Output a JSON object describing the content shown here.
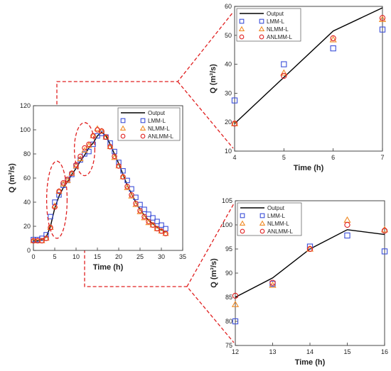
{
  "chart_data": [
    {
      "id": "main",
      "type": "line",
      "xlabel": "Time (h)",
      "ylabel": "Q (m³/s)",
      "xlim": [
        0,
        35
      ],
      "ylim": [
        0,
        120
      ],
      "xticks": [
        0,
        5,
        10,
        15,
        20,
        25,
        30,
        35
      ],
      "yticks": [
        0,
        20,
        40,
        60,
        80,
        100,
        120
      ],
      "grid": false,
      "legend_position": "top-right",
      "series": [
        {
          "name": "Output",
          "style": "line",
          "color": "#000000",
          "x": [
            0,
            1,
            2,
            3,
            4,
            5,
            6,
            7,
            8,
            9,
            10,
            11,
            12,
            13,
            14,
            15,
            16,
            17,
            18,
            19,
            20,
            21,
            22,
            23,
            24,
            25,
            26,
            27,
            28,
            29,
            30,
            31
          ],
          "y": [
            8,
            8,
            9,
            11,
            20,
            35,
            45,
            52,
            57,
            63,
            68,
            74,
            79,
            85,
            89,
            95,
            98,
            95,
            88,
            80,
            72,
            63,
            54,
            47,
            40,
            34,
            29,
            25,
            22,
            19,
            17,
            15
          ]
        },
        {
          "name": "LMM-L",
          "style": "square",
          "color": "#3b4fd8",
          "x": [
            0,
            1,
            2,
            3,
            4,
            5,
            6,
            7,
            8,
            9,
            10,
            11,
            12,
            13,
            14,
            15,
            16,
            17,
            18,
            19,
            20,
            21,
            22,
            23,
            24,
            25,
            26,
            27,
            28,
            29,
            30,
            31
          ],
          "y": [
            9,
            9,
            10,
            13,
            28,
            40,
            46,
            54,
            58,
            63,
            70,
            75,
            80,
            82,
            88,
            95,
            97,
            94,
            89,
            82,
            73,
            66,
            58,
            51,
            44,
            38,
            34,
            30,
            27,
            24,
            21,
            18
          ]
        },
        {
          "name": "NLMM-L",
          "style": "triangle",
          "color": "#f08c28",
          "x": [
            0,
            1,
            2,
            3,
            4,
            5,
            6,
            7,
            8,
            9,
            10,
            11,
            12,
            13,
            14,
            15,
            16,
            17,
            18,
            19,
            20,
            21,
            22,
            23,
            24,
            25,
            26,
            27,
            28,
            29,
            30,
            31
          ],
          "y": [
            8,
            8,
            8,
            10,
            19,
            37,
            49,
            55,
            58,
            64,
            70,
            76,
            83,
            87,
            95,
            101,
            99,
            94,
            86,
            77,
            70,
            61,
            52,
            45,
            38,
            32,
            27,
            23,
            21,
            18,
            16,
            14
          ]
        },
        {
          "name": "ANLMM-L",
          "style": "circle",
          "color": "#e02020",
          "x": [
            0,
            1,
            2,
            3,
            4,
            5,
            6,
            7,
            8,
            9,
            10,
            11,
            12,
            13,
            14,
            15,
            16,
            17,
            18,
            19,
            20,
            21,
            22,
            23,
            24,
            25,
            26,
            27,
            28,
            29,
            30,
            31
          ],
          "y": [
            8,
            8,
            8,
            10,
            19,
            36,
            49,
            56,
            59,
            64,
            71,
            78,
            85,
            88,
            95,
            100,
            99,
            94,
            86,
            78,
            70,
            61,
            53,
            46,
            39,
            33,
            28,
            24,
            21,
            18,
            16,
            14
          ]
        }
      ]
    },
    {
      "id": "zoom1",
      "type": "line",
      "xlabel": "Time (h)",
      "ylabel": "Q (m³/s)",
      "xlim": [
        4,
        7
      ],
      "ylim": [
        10,
        60
      ],
      "xticks": [
        4,
        5,
        6,
        7
      ],
      "yticks": [
        10,
        20,
        30,
        40,
        50,
        60
      ],
      "grid": false,
      "legend_position": "top-left",
      "series": [
        {
          "name": "Output",
          "style": "line",
          "color": "#000000",
          "x": [
            4,
            5,
            6,
            7
          ],
          "y": [
            19.5,
            35.5,
            51.5,
            59.5
          ]
        },
        {
          "name": "LMM-L",
          "style": "square",
          "color": "#3b4fd8",
          "x": [
            4,
            5,
            6,
            7
          ],
          "y": [
            27.5,
            40,
            45.5,
            52
          ]
        },
        {
          "name": "NLMM-L",
          "style": "triangle",
          "color": "#f08c28",
          "x": [
            4,
            5,
            6,
            7
          ],
          "y": [
            19.5,
            37,
            48.5,
            55.5
          ]
        },
        {
          "name": "ANLMM-L",
          "style": "circle",
          "color": "#e02020",
          "x": [
            4,
            5,
            6,
            7
          ],
          "y": [
            19.5,
            36,
            49,
            56
          ]
        }
      ]
    },
    {
      "id": "zoom2",
      "type": "line",
      "xlabel": "Time (h)",
      "ylabel": "Q (m³/s)",
      "xlim": [
        12,
        16
      ],
      "ylim": [
        75,
        105
      ],
      "xticks": [
        12,
        13,
        14,
        15,
        16
      ],
      "yticks": [
        75,
        80,
        85,
        90,
        95,
        100,
        105
      ],
      "grid": false,
      "legend_position": "top-left",
      "series": [
        {
          "name": "Output",
          "style": "line",
          "color": "#000000",
          "x": [
            12,
            13,
            14,
            15,
            16
          ],
          "y": [
            85,
            89,
            95,
            99,
            98
          ]
        },
        {
          "name": "LMM-L",
          "style": "square",
          "color": "#3b4fd8",
          "x": [
            12,
            13,
            14,
            15,
            16
          ],
          "y": [
            80,
            87.8,
            95.5,
            97.8,
            94.5
          ]
        },
        {
          "name": "NLMM-L",
          "style": "triangle",
          "color": "#f08c28",
          "x": [
            12,
            13,
            14,
            15,
            16
          ],
          "y": [
            83.5,
            87.5,
            95,
            101,
            99
          ]
        },
        {
          "name": "ANLMM-L",
          "style": "circle",
          "color": "#e02020",
          "x": [
            12,
            13,
            14,
            15,
            16
          ],
          "y": [
            85.3,
            88,
            95,
            100,
            98.8
          ]
        }
      ]
    }
  ],
  "connector_color": "#e02020"
}
